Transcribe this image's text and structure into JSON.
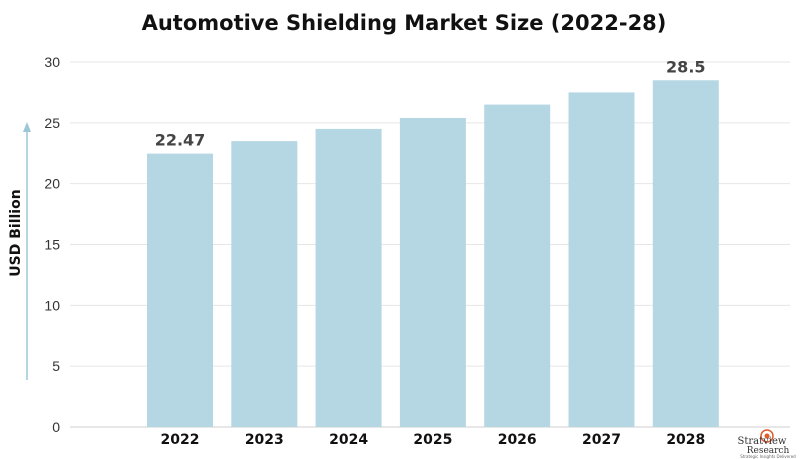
{
  "chart_data": {
    "type": "bar",
    "title": "Automotive Shielding Market Size (2022-28)",
    "xlabel": "",
    "ylabel": "USD Billion",
    "categories": [
      "2022",
      "2023",
      "2024",
      "2025",
      "2026",
      "2027",
      "2028"
    ],
    "values": [
      22.47,
      23.5,
      24.5,
      25.4,
      26.5,
      27.5,
      28.5
    ],
    "data_labels": [
      {
        "category": "2022",
        "text": "22.47"
      },
      {
        "category": "2028",
        "text": "28.5"
      }
    ],
    "ylim": [
      0,
      30
    ],
    "yticks": [
      0,
      5,
      10,
      15,
      20,
      25,
      30
    ],
    "grid": true,
    "legend": "none",
    "bar_color": "#b5d7e3"
  },
  "logo": {
    "main": "Stratview",
    "sub": "Research",
    "tagline": "Strategic Insights Delivered"
  }
}
